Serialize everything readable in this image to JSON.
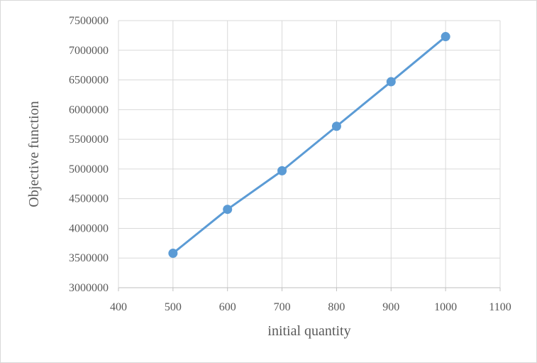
{
  "chart_data": {
    "type": "scatter",
    "title": "",
    "xlabel": "initial quantity",
    "ylabel": "Objective function",
    "xlim": [
      400,
      1100
    ],
    "ylim": [
      3000000,
      7500000
    ],
    "x_ticks": [
      400,
      500,
      600,
      700,
      800,
      900,
      1000,
      1100
    ],
    "y_ticks": [
      3000000,
      3500000,
      4000000,
      4500000,
      5000000,
      5500000,
      6000000,
      6500000,
      7000000,
      7500000
    ],
    "grid": true,
    "legend": "none",
    "series": [
      {
        "color": "#5b9bd5",
        "x": [
          500,
          600,
          700,
          800,
          900,
          1000
        ],
        "y": [
          3580000,
          4320000,
          4970000,
          5720000,
          6470000,
          7230000
        ]
      }
    ]
  }
}
